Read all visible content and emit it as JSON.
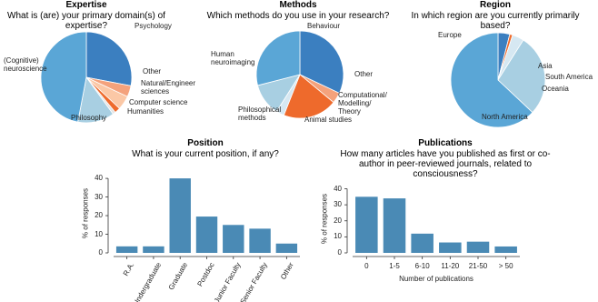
{
  "chart_data": [
    {
      "type": "pie",
      "title": "Expertise",
      "subtitle": "What is (are) your primary domain(s) of expertise?",
      "categories": [
        "Psychology",
        "Other",
        "Natural/Engineer sciences",
        "Computer science",
        "Humanities",
        "Philosophy",
        "(Cognitive) neuroscience"
      ],
      "values": [
        28,
        4,
        5,
        2,
        1,
        13,
        47
      ],
      "colors": [
        "#3b7fc0",
        "#f4a27c",
        "#fbc8a6",
        "#ee6a2c",
        "#e4e4e4",
        "#a8cfe2",
        "#5aa6d6"
      ]
    },
    {
      "type": "pie",
      "title": "Methods",
      "subtitle": "Which methods do you use in your research?",
      "categories": [
        "Behaviour",
        "Other",
        "Computational/ Modelling/ Theory",
        "Animal studies",
        "Philosophical methods",
        "Human neuroimaging"
      ],
      "values": [
        32,
        4,
        20,
        3,
        12,
        29
      ],
      "colors": [
        "#3b7fc0",
        "#f4a27c",
        "#ee6a2c",
        "#d6e8f2",
        "#a8cfe2",
        "#5aa6d6"
      ]
    },
    {
      "type": "pie",
      "title": "Region",
      "subtitle": "In which region are you currently primarily based?",
      "categories": [
        "Asia",
        "South America",
        "Oceania",
        "North America",
        "Europe"
      ],
      "values": [
        4,
        1,
        4,
        28,
        63
      ],
      "colors": [
        "#3b7fc0",
        "#ee6a2c",
        "#d6e8f2",
        "#a8cfe2",
        "#5aa6d6"
      ]
    },
    {
      "type": "bar",
      "title": "Position",
      "subtitle": "What is your current position, if any?",
      "ylabel": "% of responses",
      "categories": [
        "R.A.",
        "Undergraduate",
        "Graduate",
        "Postdoc",
        "Junior Faculty",
        "Senior Faculty",
        "Other"
      ],
      "values": [
        3.5,
        3.5,
        40,
        19.5,
        15,
        13,
        5
      ],
      "color": "#4a8ab5",
      "ylim": [
        0,
        42
      ],
      "yticks": [
        0,
        10,
        20,
        30,
        40
      ]
    },
    {
      "type": "bar",
      "title": "Publications",
      "subtitle": "How many articles have you published as first or co-author in peer-reviewed journals, related to consciousness?",
      "ylabel": "% of responses",
      "xlabel": "Number of publications",
      "categories": [
        "0",
        "1-5",
        "6-10",
        "11-20",
        "21-50",
        "> 50"
      ],
      "values": [
        35,
        34,
        12,
        6.5,
        7,
        4
      ],
      "color": "#4a8ab5",
      "ylim": [
        0,
        42
      ],
      "yticks": [
        0,
        10,
        20,
        30,
        40
      ]
    }
  ]
}
